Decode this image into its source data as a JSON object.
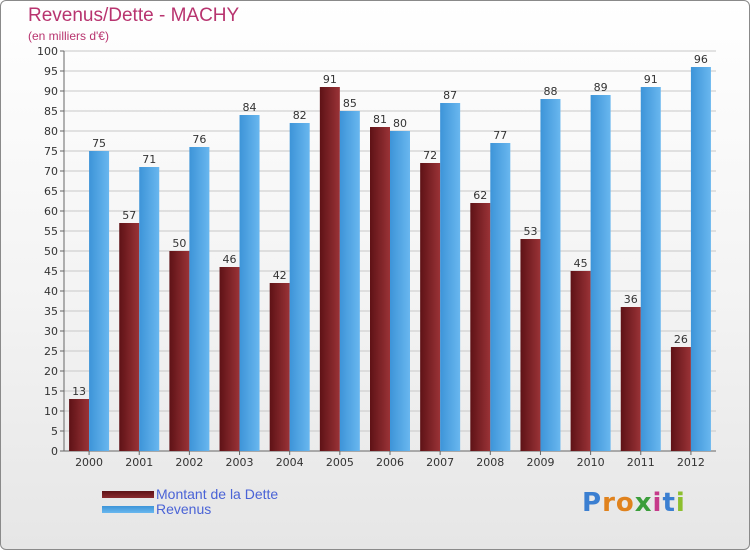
{
  "title": "Revenus/Dette - MACHY",
  "subtitle": "(en milliers d'€)",
  "brand": "Proxiti",
  "colors": {
    "debt": "#7a1c20",
    "debt_light": "#9c3a3e",
    "revenue": "#4aa3e4",
    "revenue_light": "#6bbcf2",
    "title": "#b8346f",
    "legend_text": "#4a63d6"
  },
  "chart_data": {
    "type": "bar",
    "title": "Revenus/Dette - MACHY",
    "subtitle": "(en milliers d'€)",
    "categories": [
      "2000",
      "2001",
      "2002",
      "2003",
      "2004",
      "2005",
      "2006",
      "2007",
      "2008",
      "2009",
      "2010",
      "2011",
      "2012"
    ],
    "series": [
      {
        "name": "Montant de la Dette",
        "values": [
          13,
          57,
          50,
          46,
          42,
          91,
          81,
          72,
          62,
          53,
          45,
          36,
          26
        ]
      },
      {
        "name": "Revenus",
        "values": [
          75,
          71,
          76,
          84,
          82,
          85,
          80,
          87,
          77,
          88,
          89,
          91,
          96
        ]
      }
    ],
    "ylim": [
      0,
      100
    ],
    "yticks": [
      0,
      5,
      10,
      15,
      20,
      25,
      30,
      35,
      40,
      45,
      50,
      55,
      60,
      65,
      70,
      75,
      80,
      85,
      90,
      95,
      100
    ],
    "grid": true,
    "legend_position": "bottom-left"
  },
  "legend": [
    {
      "label": "Montant de la Dette"
    },
    {
      "label": "Revenus"
    }
  ]
}
